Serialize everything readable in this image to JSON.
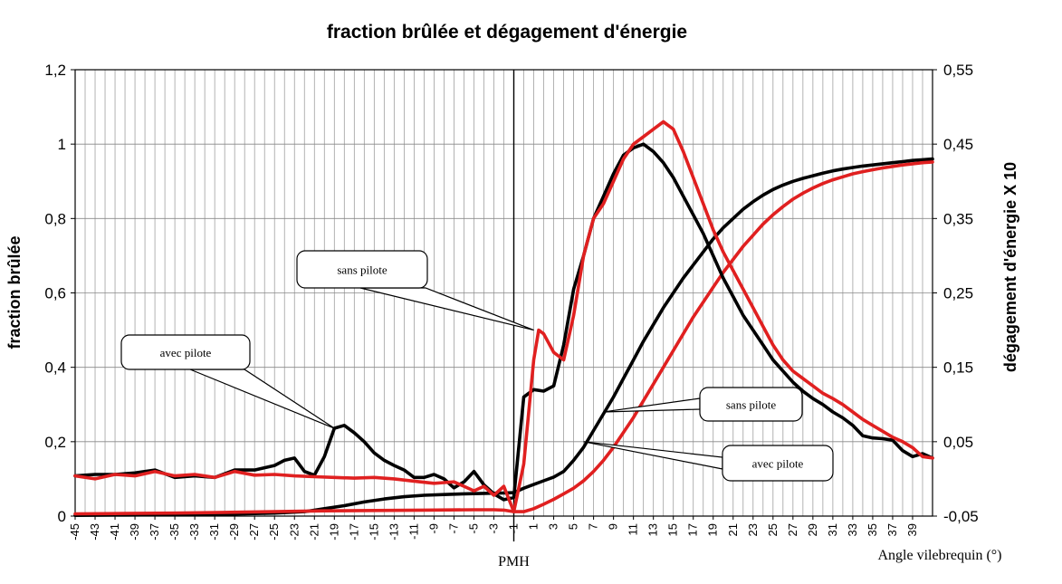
{
  "chart_data": {
    "type": "line",
    "title": "fraction brûlée et dégagement d'énergie",
    "xlabel": "Angle vilebrequin (°)",
    "ylabel": "fraction brûlée",
    "ylabel_right": "dégagement d'énergie X 10",
    "xlim": [
      -45,
      41
    ],
    "ylim": [
      0,
      1.2
    ],
    "ylim_right": [
      -0.05,
      0.55
    ],
    "x_tick_labels": [
      "-45",
      "-43",
      "-41",
      "-39",
      "-37",
      "-35",
      "-33",
      "-31",
      "-29",
      "-27",
      "-25",
      "-23",
      "-21",
      "-19",
      "-17",
      "-15",
      "-13",
      "-11",
      "-9",
      "-7",
      "-5",
      "-3",
      "-1",
      "1",
      "3",
      "5",
      "7",
      "9",
      "11",
      "13",
      "15",
      "17",
      "19",
      "21",
      "23",
      "25",
      "27",
      "29",
      "31",
      "33",
      "35",
      "37",
      "39"
    ],
    "y_tick_labels": [
      "0",
      "0,2",
      "0,4",
      "0,6",
      "0,8",
      "1",
      "1,2"
    ],
    "y_tick_labels_right": [
      "-0,05",
      "0,05",
      "0,15",
      "0,25",
      "0,35",
      "0,45",
      "0,55"
    ],
    "grid": "vertical lines every 1°, horizontal lines at major ticks",
    "marker": {
      "x": -1,
      "label": "PMH"
    },
    "series": [
      {
        "name": "fraction brûlée sans pilote",
        "color": "#000000",
        "axis": "left",
        "x": [
          -45,
          -40,
          -35,
          -30,
          -25,
          -22,
          -20,
          -18,
          -16,
          -14,
          -12,
          -10,
          -8,
          -6,
          -4,
          -2,
          -1,
          0,
          1,
          2,
          3,
          4,
          5,
          6,
          7,
          8,
          9,
          10,
          11,
          12,
          13,
          14,
          15,
          16,
          17,
          18,
          19,
          20,
          21,
          22,
          23,
          24,
          25,
          26,
          27,
          28,
          29,
          30,
          31,
          32,
          33,
          34,
          35,
          36,
          37,
          38,
          39,
          40,
          41
        ],
        "y": [
          0.002,
          0.003,
          0.004,
          0.005,
          0.008,
          0.012,
          0.02,
          0.028,
          0.038,
          0.046,
          0.052,
          0.056,
          0.058,
          0.06,
          0.061,
          0.062,
          0.063,
          0.075,
          0.085,
          0.095,
          0.105,
          0.12,
          0.15,
          0.185,
          0.23,
          0.275,
          0.32,
          0.37,
          0.42,
          0.47,
          0.515,
          0.56,
          0.6,
          0.64,
          0.675,
          0.71,
          0.745,
          0.775,
          0.8,
          0.825,
          0.845,
          0.863,
          0.878,
          0.89,
          0.9,
          0.908,
          0.915,
          0.922,
          0.928,
          0.933,
          0.937,
          0.941,
          0.944,
          0.947,
          0.95,
          0.953,
          0.956,
          0.958,
          0.96
        ]
      },
      {
        "name": "fraction brûlée avec pilote",
        "color": "#e02020",
        "axis": "left",
        "x": [
          -45,
          -40,
          -35,
          -30,
          -25,
          -20,
          -15,
          -10,
          -5,
          -3,
          -2,
          -1,
          0,
          1,
          2,
          3,
          4,
          5,
          6,
          7,
          8,
          9,
          10,
          11,
          12,
          13,
          14,
          15,
          16,
          17,
          18,
          19,
          20,
          21,
          22,
          23,
          24,
          25,
          26,
          27,
          28,
          29,
          30,
          31,
          32,
          33,
          34,
          35,
          36,
          37,
          38,
          39,
          40,
          41
        ],
        "y": [
          0.006,
          0.007,
          0.008,
          0.01,
          0.012,
          0.014,
          0.015,
          0.016,
          0.017,
          0.017,
          0.016,
          0.012,
          0.012,
          0.02,
          0.032,
          0.045,
          0.06,
          0.075,
          0.095,
          0.12,
          0.15,
          0.185,
          0.225,
          0.265,
          0.31,
          0.355,
          0.4,
          0.445,
          0.49,
          0.535,
          0.575,
          0.615,
          0.655,
          0.69,
          0.725,
          0.755,
          0.785,
          0.81,
          0.832,
          0.852,
          0.868,
          0.882,
          0.894,
          0.904,
          0.912,
          0.92,
          0.926,
          0.931,
          0.936,
          0.94,
          0.944,
          0.947,
          0.95,
          0.952
        ]
      },
      {
        "name": "dégagement d'énergie sans pilote",
        "color": "#000000",
        "axis": "right",
        "x": [
          -45,
          -43,
          -41,
          -39,
          -37,
          -35,
          -33,
          -31,
          -29,
          -27,
          -25,
          -24,
          -23,
          -22,
          -21,
          -20,
          -19,
          -18,
          -17,
          -16,
          -15,
          -14,
          -13,
          -12,
          -11,
          -10,
          -9,
          -8,
          -7,
          -6,
          -5,
          -4,
          -3,
          -2,
          -1,
          0,
          1,
          2,
          3,
          4,
          5,
          6,
          7,
          8,
          9,
          10,
          11,
          12,
          13,
          14,
          15,
          16,
          17,
          18,
          19,
          20,
          21,
          22,
          23,
          24,
          25,
          26,
          27,
          28,
          29,
          30,
          31,
          32,
          33,
          34,
          35,
          36,
          37,
          38,
          39,
          40,
          41
        ],
        "y": [
          0.004,
          0.006,
          0.006,
          0.008,
          0.012,
          0.002,
          0.004,
          0.002,
          0.012,
          0.012,
          0.018,
          0.025,
          0.028,
          0.01,
          0.005,
          0.03,
          0.068,
          0.072,
          0.062,
          0.05,
          0.035,
          0.025,
          0.018,
          0.012,
          0.002,
          0.002,
          0.006,
          0.0,
          -0.012,
          -0.004,
          0.01,
          -0.008,
          -0.02,
          -0.028,
          -0.025,
          0.11,
          0.12,
          0.118,
          0.125,
          0.18,
          0.255,
          0.3,
          0.35,
          0.38,
          0.41,
          0.435,
          0.445,
          0.45,
          0.44,
          0.425,
          0.405,
          0.38,
          0.355,
          0.33,
          0.3,
          0.27,
          0.245,
          0.22,
          0.2,
          0.18,
          0.16,
          0.145,
          0.13,
          0.118,
          0.108,
          0.1,
          0.09,
          0.082,
          0.072,
          0.058,
          0.055,
          0.054,
          0.052,
          0.038,
          0.03,
          0.034,
          0.028
        ]
      },
      {
        "name": "dégagement d'énergie avec pilote",
        "color": "#e02020",
        "axis": "right",
        "x": [
          -45,
          -43,
          -41,
          -39,
          -37,
          -35,
          -33,
          -31,
          -29,
          -27,
          -25,
          -23,
          -21,
          -19,
          -17,
          -15,
          -13,
          -11,
          -9,
          -8,
          -7,
          -6,
          -5,
          -4,
          -3,
          -2,
          -1,
          0,
          1,
          1.5,
          2,
          3,
          4,
          5,
          6,
          7,
          8,
          9,
          10,
          11,
          12,
          13,
          14,
          15,
          16,
          17,
          18,
          19,
          20,
          21,
          22,
          23,
          24,
          25,
          26,
          27,
          28,
          29,
          30,
          31,
          32,
          33,
          34,
          35,
          36,
          37,
          38,
          39,
          40,
          41
        ],
        "y": [
          0.004,
          0.0,
          0.006,
          0.004,
          0.01,
          0.004,
          0.006,
          0.002,
          0.01,
          0.005,
          0.006,
          0.004,
          0.003,
          0.002,
          0.001,
          0.002,
          0.0,
          -0.003,
          -0.006,
          -0.005,
          -0.004,
          -0.01,
          -0.016,
          -0.01,
          -0.022,
          -0.01,
          -0.044,
          0.02,
          0.16,
          0.2,
          0.195,
          0.17,
          0.16,
          0.22,
          0.3,
          0.35,
          0.37,
          0.4,
          0.43,
          0.45,
          0.46,
          0.47,
          0.48,
          0.47,
          0.44,
          0.405,
          0.37,
          0.335,
          0.305,
          0.28,
          0.255,
          0.23,
          0.205,
          0.18,
          0.16,
          0.145,
          0.135,
          0.125,
          0.115,
          0.108,
          0.1,
          0.09,
          0.08,
          0.072,
          0.064,
          0.056,
          0.05,
          0.042,
          0.03,
          0.028
        ]
      }
    ],
    "annotations": [
      {
        "id": "sans-pilote-1",
        "text": "sans pilote",
        "target_x": 1,
        "target_y": 0.2,
        "target_axis": "right"
      },
      {
        "id": "avec-pilote-1",
        "text": "avec pilote",
        "target_x": -19,
        "target_y": 0.068,
        "target_axis": "right"
      },
      {
        "id": "sans-pilote-2",
        "text": "sans pilote",
        "target_x": 8,
        "target_y": 0.28,
        "target_axis": "left"
      },
      {
        "id": "avec-pilote-2",
        "text": "avec pilote",
        "target_x": 6,
        "target_y": 0.2,
        "target_axis": "left"
      }
    ]
  }
}
